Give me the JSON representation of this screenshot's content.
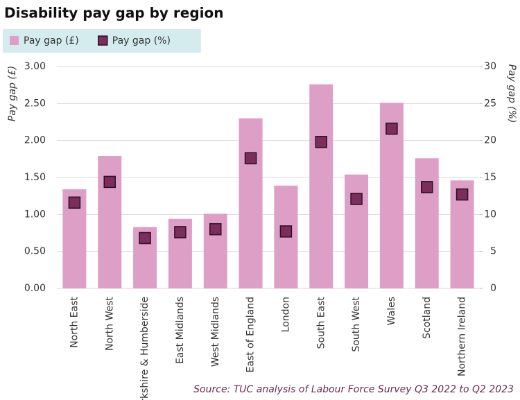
{
  "chart_data": {
    "type": "bar",
    "title": "Disability pay gap by region",
    "source": "Source: TUC analysis of Labour Force Survey Q3 2022 to Q2 2023",
    "y_label": "Pay gap (£)",
    "y2_label": "Pay gap (%)",
    "categories": [
      "North East",
      "North West",
      "Yorkshire & Humberside",
      "East Midlands",
      "West Midlands",
      "East of England",
      "London",
      "South East",
      "South West",
      "Wales",
      "Scotland",
      "Northern Ireland"
    ],
    "series": [
      {
        "name": "Pay gap (£)",
        "type": "bar",
        "color": "#dd9fc6",
        "values": [
          1.34,
          1.79,
          0.83,
          0.94,
          1.01,
          2.3,
          1.39,
          2.76,
          1.54,
          2.51,
          1.76,
          1.46
        ]
      },
      {
        "name": "Pay gap (%)",
        "type": "square",
        "axis": "y2",
        "color": "#7b2d5c",
        "values": [
          11.6,
          14.4,
          6.8,
          7.6,
          8.0,
          17.6,
          7.7,
          19.8,
          12.1,
          21.6,
          13.7,
          12.7
        ]
      }
    ],
    "ylim": [
      0,
      3
    ],
    "yticks": [
      {
        "value": 0,
        "label": "0.00"
      },
      {
        "value": 0.5,
        "label": "0.50"
      },
      {
        "value": 1,
        "label": "1.00"
      },
      {
        "value": 1.5,
        "label": "1.50"
      },
      {
        "value": 2,
        "label": "2.00"
      },
      {
        "value": 2.5,
        "label": "2.50"
      },
      {
        "value": 3,
        "label": "3.00"
      }
    ],
    "y2lim": [
      0,
      30
    ],
    "y2ticks": [
      0,
      5,
      10,
      15,
      20,
      25,
      30
    ],
    "grid": true
  }
}
